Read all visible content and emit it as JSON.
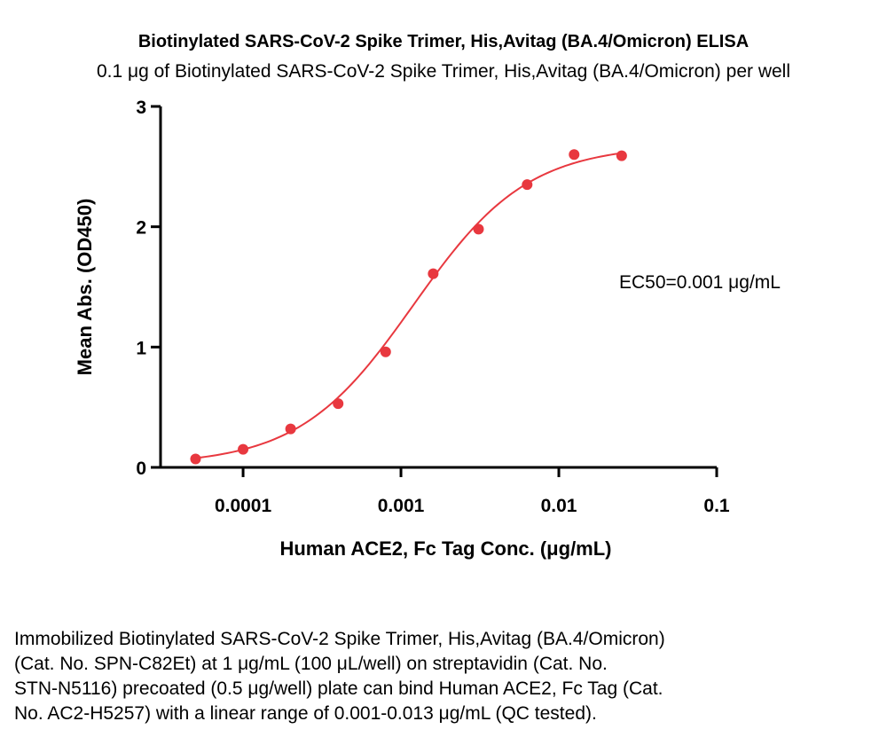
{
  "header": {
    "title": "Biotinylated SARS-CoV-2 Spike Trimer, His,Avitag (BA.4/Omicron) ELISA",
    "subtitle": "0.1 μg of Biotinylated SARS-CoV-2 Spike Trimer, His,Avitag (BA.4/Omicron) per well"
  },
  "chart_data": {
    "type": "scatter",
    "xlabel": "Human ACE2, Fc Tag Conc. (μg/mL)",
    "ylabel": "Mean Abs. (OD450)",
    "x_scale": "log",
    "xlim": [
      3e-05,
      0.1
    ],
    "ylim": [
      0,
      3
    ],
    "x_ticks": [
      0.0001,
      0.001,
      0.01,
      0.1
    ],
    "x_tick_labels": [
      "0.0001",
      "0.001",
      "0.01",
      "0.1"
    ],
    "y_ticks": [
      0,
      1,
      2,
      3
    ],
    "y_tick_labels": [
      "0",
      "1",
      "2",
      "3"
    ],
    "grid": false,
    "color": "#e8383f",
    "series": [
      {
        "x": [
          5e-05,
          0.0001,
          0.0002,
          0.0004,
          0.0008,
          0.0016,
          0.0031,
          0.0063,
          0.0125,
          0.025
        ],
        "y": [
          0.07,
          0.15,
          0.32,
          0.53,
          0.96,
          1.61,
          1.98,
          2.35,
          2.6,
          2.59
        ]
      }
    ],
    "fit": {
      "model": "4PL",
      "bottom": 0.02,
      "top": 2.68,
      "ec50": 0.0012,
      "hill": 1.2
    },
    "annotation": "EC50=0.001 μg/mL"
  },
  "caption": {
    "lines": [
      "Immobilized Biotinylated SARS-CoV-2 Spike Trimer, His,Avitag (BA.4/Omicron)",
      "(Cat. No. SPN-C82Et) at 1 μg/mL (100 μL/well) on streptavidin (Cat. No.",
      "STN-N5116) precoated (0.5 μg/well) plate can bind Human ACE2, Fc Tag (Cat.",
      "No. AC2-H5257) with a linear range of 0.001-0.013 μg/mL (QC tested)."
    ]
  }
}
